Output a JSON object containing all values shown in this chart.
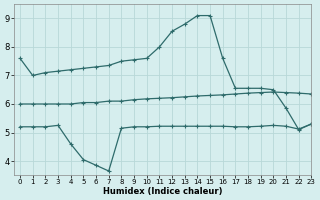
{
  "line1_x": [
    0,
    1,
    2,
    3,
    4,
    5,
    6,
    7,
    8,
    9,
    10,
    11,
    12,
    13,
    14,
    15,
    16,
    17,
    18,
    19,
    20,
    21,
    22,
    23
  ],
  "line1_y": [
    7.6,
    7.0,
    7.1,
    7.15,
    7.2,
    7.25,
    7.3,
    7.35,
    7.5,
    7.55,
    7.6,
    8.0,
    8.55,
    8.8,
    9.1,
    9.1,
    7.6,
    6.55,
    6.55,
    6.55,
    6.5,
    5.85,
    5.1,
    5.3
  ],
  "line2_x": [
    0,
    1,
    2,
    3,
    4,
    5,
    6,
    7,
    8,
    9,
    10,
    11,
    12,
    13,
    14,
    15,
    16,
    17,
    18,
    19,
    20,
    21,
    22,
    23
  ],
  "line2_y": [
    6.0,
    6.0,
    6.0,
    6.0,
    6.0,
    6.05,
    6.05,
    6.1,
    6.1,
    6.15,
    6.18,
    6.2,
    6.22,
    6.25,
    6.28,
    6.3,
    6.32,
    6.35,
    6.38,
    6.4,
    6.42,
    6.4,
    6.38,
    6.35
  ],
  "line3_x": [
    0,
    1,
    2,
    3,
    4,
    5,
    6,
    7,
    8,
    9,
    10,
    11,
    12,
    13,
    14,
    15,
    16,
    17,
    18,
    19,
    20,
    21,
    22,
    23
  ],
  "line3_y": [
    5.2,
    5.2,
    5.2,
    5.25,
    4.6,
    4.05,
    3.85,
    3.65,
    5.15,
    5.2,
    5.2,
    5.22,
    5.22,
    5.22,
    5.22,
    5.22,
    5.22,
    5.2,
    5.2,
    5.22,
    5.25,
    5.22,
    5.12,
    5.3
  ],
  "line_color": "#2e6b6b",
  "bg_color": "#d6eeee",
  "grid_color": "#b8d8d8",
  "xlabel": "Humidex (Indice chaleur)",
  "xlim": [
    -0.5,
    23
  ],
  "ylim": [
    3.5,
    9.5
  ],
  "yticks": [
    4,
    5,
    6,
    7,
    8,
    9
  ],
  "xticks": [
    0,
    1,
    2,
    3,
    4,
    5,
    6,
    7,
    8,
    9,
    10,
    11,
    12,
    13,
    14,
    15,
    16,
    17,
    18,
    19,
    20,
    21,
    22,
    23
  ],
  "xtick_labels": [
    "0",
    "1",
    "2",
    "3",
    "4",
    "5",
    "6",
    "7",
    "8",
    "9",
    "10",
    "11",
    "12",
    "13",
    "14",
    "15",
    "16",
    "17",
    "18",
    "19",
    "20",
    "21",
    "22",
    "23"
  ],
  "marker": "+",
  "marker_size": 3.5,
  "line_width": 0.9,
  "xlabel_fontsize": 6,
  "xtick_fontsize": 5,
  "ytick_fontsize": 6
}
